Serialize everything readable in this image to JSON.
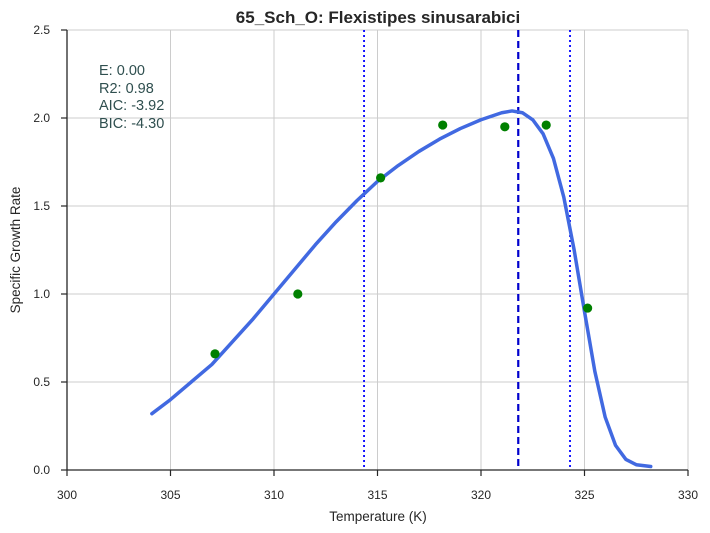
{
  "chart_data": {
    "type": "scatter",
    "title": "65_Sch_O: Flexistipes sinusarabici",
    "xlabel": "Temperature (K)",
    "ylabel": "Specific Growth Rate",
    "xlim": [
      300,
      330
    ],
    "ylim": [
      0.0,
      2.5
    ],
    "x_ticks": [
      300,
      305,
      310,
      315,
      320,
      325,
      330
    ],
    "y_ticks": [
      0.0,
      0.5,
      1.0,
      1.5,
      2.0,
      2.5
    ],
    "x_tick_labels": [
      "300",
      "305",
      "310",
      "315",
      "320",
      "325",
      "330"
    ],
    "y_tick_labels": [
      "0.0",
      "0.5",
      "1.0",
      "1.5",
      "2.0",
      "2.5"
    ],
    "grid": true,
    "points": {
      "color": "#008000",
      "x": [
        307.15,
        311.15,
        315.15,
        318.15,
        321.15,
        323.15,
        325.15
      ],
      "y": [
        0.66,
        1.0,
        1.66,
        1.96,
        1.95,
        1.96,
        0.92
      ]
    },
    "fit_curve": {
      "color": "#4169e1",
      "x": [
        304.1,
        305,
        306,
        307,
        308,
        309,
        310,
        311,
        312,
        313,
        314,
        315,
        316,
        317,
        318,
        319,
        320,
        320.5,
        321,
        321.5,
        322,
        322.5,
        323,
        323.5,
        324,
        324.5,
        325,
        325.5,
        326,
        326.5,
        327,
        327.5,
        328.2
      ],
      "y": [
        0.32,
        0.4,
        0.5,
        0.6,
        0.73,
        0.86,
        1.0,
        1.14,
        1.28,
        1.41,
        1.53,
        1.64,
        1.73,
        1.81,
        1.88,
        1.94,
        1.99,
        2.01,
        2.03,
        2.04,
        2.03,
        1.99,
        1.91,
        1.77,
        1.55,
        1.25,
        0.9,
        0.56,
        0.3,
        0.14,
        0.06,
        0.03,
        0.02
      ]
    },
    "vertical_lines": [
      {
        "x": 321.8,
        "style": "dashed",
        "color": "#0000cd"
      },
      {
        "x": 314.35,
        "style": "dotted",
        "color": "#0000ff"
      },
      {
        "x": 324.3,
        "style": "dotted",
        "color": "#0000ff"
      }
    ],
    "annotation": [
      "E:  0.00",
      "R2:  0.98",
      "AIC: -3.92",
      "BIC: -4.30"
    ]
  }
}
